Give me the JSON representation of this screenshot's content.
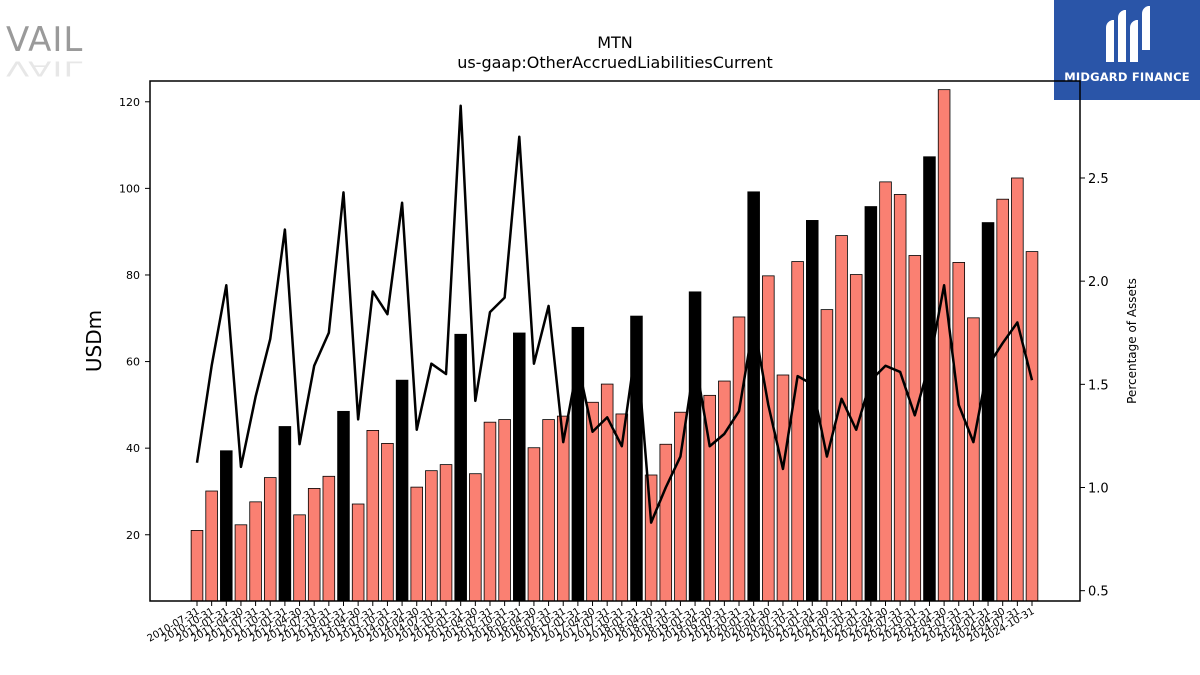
{
  "branding": {
    "left_logo_text": "VAIL",
    "right_logo_text": "MIDGARD FINANCE",
    "right_logo_icon": "midgard-m-icon",
    "right_logo_color": "#2a55a8"
  },
  "chart_data": {
    "type": "bar",
    "title": "MTN",
    "subtitle": "us-gaap:OtherAccruedLiabilitiesCurrent",
    "ylabel": "USDm",
    "y2label": "Percentage of Assets",
    "ylim": [
      4.7,
      124.8
    ],
    "y2lim": [
      0.45,
      2.97
    ],
    "yticks": [
      20,
      40,
      60,
      80,
      100,
      120
    ],
    "y2ticks": [
      0.5,
      1.0,
      1.5,
      2.0,
      2.5
    ],
    "grid": false,
    "colors": {
      "bar": "#fa8072",
      "bar_highlight": "#000000",
      "line": "#000000"
    },
    "categories": [
      "2010-07-31",
      "2010-10-31",
      "2011-01-31",
      "2011-04-30",
      "2011-07-31",
      "2011-10-31",
      "2012-01-31",
      "2012-04-30",
      "2012-07-31",
      "2012-10-31",
      "2013-01-31",
      "2013-04-30",
      "2013-07-31",
      "2013-10-31",
      "2014-01-31",
      "2014-04-30",
      "2014-07-31",
      "2014-10-31",
      "2015-01-31",
      "2015-04-30",
      "2015-07-31",
      "2015-10-31",
      "2016-01-31",
      "2016-04-30",
      "2016-07-31",
      "2016-10-31",
      "2017-01-31",
      "2017-04-30",
      "2017-07-31",
      "2017-10-31",
      "2018-01-31",
      "2018-04-30",
      "2018-07-31",
      "2018-10-31",
      "2019-01-31",
      "2019-04-30",
      "2019-07-31",
      "2019-10-31",
      "2020-01-31",
      "2020-04-30",
      "2020-07-31",
      "2020-10-31",
      "2021-01-31",
      "2021-04-30",
      "2021-07-31",
      "2021-10-31",
      "2022-01-31",
      "2022-04-30",
      "2022-07-31",
      "2022-10-31",
      "2023-01-31",
      "2023-04-30",
      "2023-07-31",
      "2023-10-31",
      "2024-01-31",
      "2024-04-30",
      "2024-07-31",
      "2024-10-31"
    ],
    "tick_labels": [
      "2010-07-31",
      "2010-10-31",
      "2011-01-31",
      "2011-04-30",
      "2011-07-31",
      "2011-10-31",
      "2012-01-31",
      "2012-04-30",
      "2012-07-31",
      "2012-10-31",
      "2013-01-31",
      "2013-04-30",
      "2013-07-31",
      "2013-10-31",
      "2014-01-31",
      "2014-04-30",
      "2014-07-31",
      "2014-10-31",
      "2015-01-31",
      "2015-04-30",
      "2015-07-31",
      "2015-10-31",
      "2016-01-31",
      "2016-04-30",
      "2016-07-31",
      "2016-10-31",
      "2017-01-31",
      "2017-04-30",
      "2017-07-31",
      "2017-10-31",
      "2018-01-31",
      "2018-04-30",
      "2018-07-31",
      "2018-10-31",
      "2019-01-31",
      "2019-04-30",
      "2019-07-31",
      "2019-10-31",
      "2020-01-31",
      "2020-04-30",
      "2020-07-31",
      "2020-10-31",
      "2021-01-31",
      "2021-04-30",
      "2021-07-31",
      "2021-10-31",
      "2022-01-31",
      "2022-04-30",
      "2022-07-31",
      "2022-10-31",
      "2023-01-31",
      "2023-04-30",
      "2023-07-31",
      "2023-10-31",
      "2024-01-31",
      "2024-04-30",
      "2024-07-31",
      "2024-10-31"
    ],
    "series": [
      {
        "type": "bar",
        "axis": "left",
        "values": [
          21.0,
          30.1,
          39.4,
          22.3,
          27.6,
          33.2,
          45.0,
          24.6,
          30.7,
          33.5,
          48.5,
          27.1,
          44.1,
          41.1,
          55.7,
          31.0,
          34.8,
          36.2,
          66.3,
          34.1,
          46.0,
          46.6,
          66.6,
          40.1,
          46.6,
          47.4,
          67.9,
          50.6,
          54.8,
          47.9,
          70.5,
          33.8,
          40.9,
          48.3,
          76.1,
          52.2,
          55.5,
          70.3,
          99.2,
          79.8,
          56.9,
          83.1,
          92.6,
          72.0,
          89.1,
          80.1,
          95.8,
          101.5,
          98.6,
          84.5,
          107.3,
          122.8,
          82.9,
          70.1,
          92.1,
          97.5,
          102.4,
          85.4
        ],
        "highlight": [
          false,
          false,
          true,
          false,
          false,
          false,
          true,
          false,
          false,
          false,
          true,
          false,
          false,
          false,
          true,
          false,
          false,
          false,
          true,
          false,
          false,
          false,
          true,
          false,
          false,
          false,
          true,
          false,
          false,
          false,
          true,
          false,
          false,
          false,
          true,
          false,
          false,
          false,
          true,
          false,
          false,
          false,
          true,
          false,
          false,
          false,
          true,
          false,
          false,
          false,
          true,
          false,
          false,
          false,
          true,
          false,
          false,
          false
        ]
      },
      {
        "type": "line",
        "axis": "right",
        "values": [
          1.12,
          1.59,
          1.98,
          1.1,
          1.44,
          1.72,
          2.25,
          1.21,
          1.59,
          1.75,
          2.43,
          1.33,
          1.95,
          1.84,
          2.38,
          1.28,
          1.6,
          1.55,
          2.85,
          1.42,
          1.85,
          1.92,
          2.7,
          1.6,
          1.88,
          1.22,
          1.6,
          1.27,
          1.34,
          1.2,
          1.7,
          0.83,
          1.0,
          1.15,
          1.62,
          1.2,
          1.26,
          1.37,
          1.8,
          1.4,
          1.09,
          1.54,
          1.5,
          1.15,
          1.43,
          1.28,
          1.52,
          1.59,
          1.56,
          1.35,
          1.6,
          1.98,
          1.4,
          1.22,
          1.59,
          1.7,
          1.8,
          1.52
        ]
      }
    ]
  }
}
